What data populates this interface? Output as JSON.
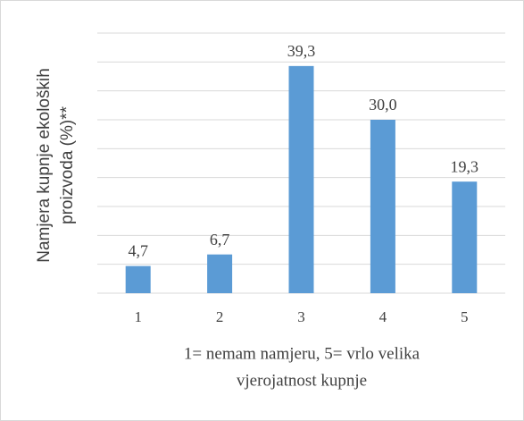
{
  "chart_data": {
    "type": "bar",
    "ylabel": [
      "Namjera kupnje ekoloških",
      "proizvoda (%)**"
    ],
    "xlabel": [
      "1= nemam namjeru, 5= vrlo velika",
      "vjerojatnost kupnje"
    ],
    "categories": [
      "1",
      "2",
      "3",
      "4",
      "5"
    ],
    "values": [
      4.7,
      6.7,
      39.3,
      30.0,
      19.3
    ],
    "value_labels": [
      "4,7",
      "6,7",
      "39,3",
      "30,0",
      "19,3"
    ],
    "color": "#5b9bd5",
    "ylim": [
      0,
      45
    ],
    "yticks": [
      0,
      5,
      10,
      15,
      20,
      25,
      30,
      35,
      40,
      45
    ],
    "grid": true
  }
}
